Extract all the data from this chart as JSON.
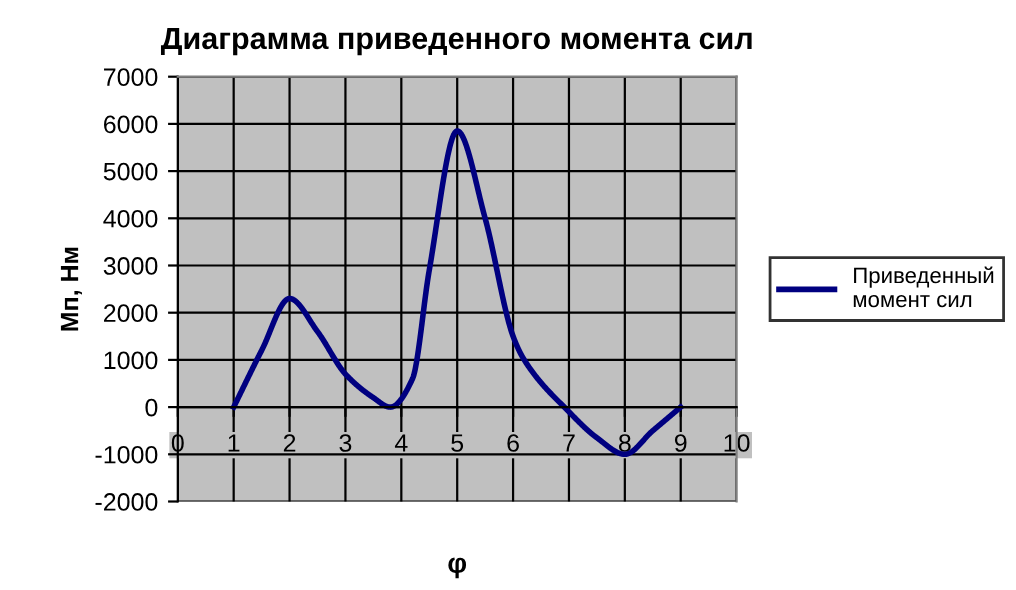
{
  "chart_data": {
    "type": "line",
    "title": "Диаграмма приведенного момента сил",
    "xlabel": "φ",
    "ylabel": "Мп, Нм",
    "x": [
      1,
      1.5,
      2,
      2.5,
      3,
      3.5,
      3.8,
      4.2,
      4.5,
      5,
      5.5,
      6,
      6.2,
      7,
      7.5,
      8,
      8.5,
      9
    ],
    "series": [
      {
        "name": "Приведенный момент сил",
        "color": "#000080",
        "values": [
          0,
          1200,
          2300,
          1600,
          700,
          200,
          0,
          600,
          2900,
          5850,
          4000,
          1500,
          1000,
          -100,
          -650,
          -1000,
          -500,
          0
        ]
      }
    ],
    "xlim": [
      0,
      10
    ],
    "xticks": [
      0,
      1,
      2,
      3,
      4,
      5,
      6,
      7,
      8,
      9,
      10
    ],
    "ylim": [
      -2000,
      7000
    ],
    "yticks": [
      -2000,
      -1000,
      0,
      1000,
      2000,
      3000,
      4000,
      5000,
      6000,
      7000
    ],
    "grid": true,
    "legend": "right",
    "marker": "none",
    "line_style": "solid"
  }
}
